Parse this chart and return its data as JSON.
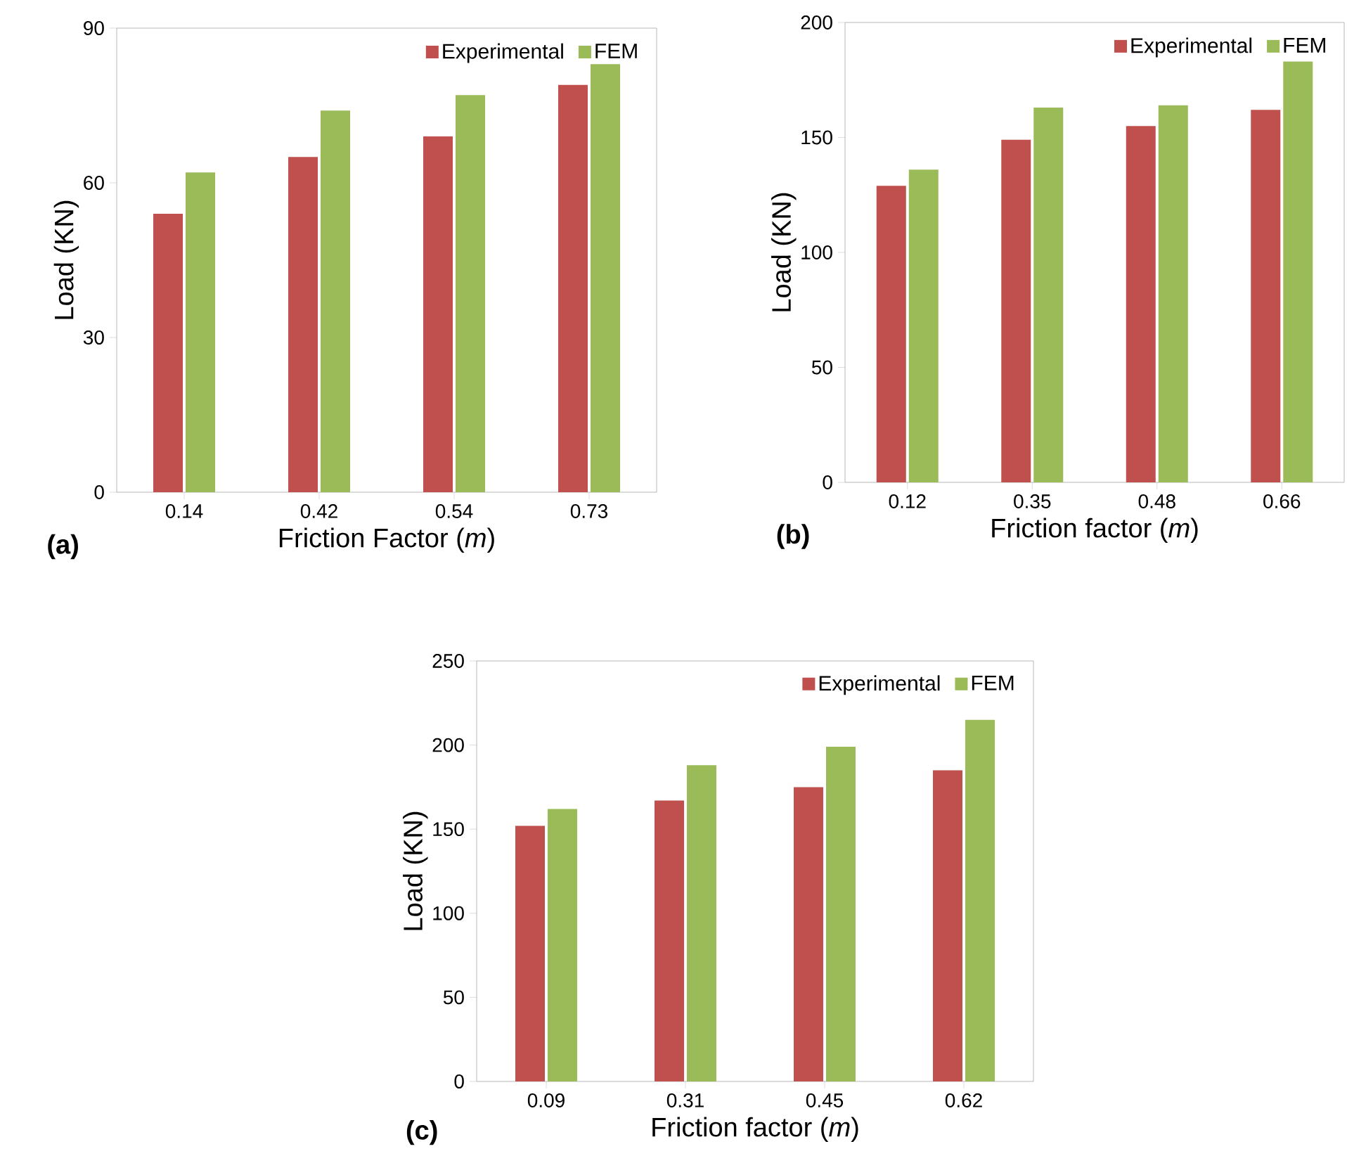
{
  "chart_data": [
    {
      "type": "bar",
      "ylabel": "Load (KN)",
      "xlabel": "Friction Factor (*m*)",
      "categories": [
        "0.14",
        "0.42",
        "0.54",
        "0.73"
      ],
      "ylim": [
        0,
        90
      ],
      "yticks": [
        0,
        30,
        60,
        90
      ],
      "legend": "top right",
      "annotations": [
        "(a)"
      ],
      "series": [
        {
          "name": "Experimental",
          "color": "#c0504d",
          "values": [
            54,
            65,
            69,
            79
          ]
        },
        {
          "name": "FEM",
          "color": "#9bbb59",
          "values": [
            62,
            74,
            77,
            83
          ]
        }
      ]
    },
    {
      "type": "bar",
      "ylabel": "Load (KN)",
      "xlabel": "Friction factor (*m*)",
      "categories": [
        "0.12",
        "0.35",
        "0.48",
        "0.66"
      ],
      "ylim": [
        0,
        200
      ],
      "yticks": [
        0,
        50,
        100,
        150,
        200
      ],
      "legend": "top right",
      "annotations": [
        "(b)"
      ],
      "series": [
        {
          "name": "Experimental",
          "color": "#c0504d",
          "values": [
            129,
            149,
            155,
            162
          ]
        },
        {
          "name": "FEM",
          "color": "#9bbb59",
          "values": [
            136,
            163,
            164,
            183
          ]
        }
      ]
    },
    {
      "type": "bar",
      "ylabel": "Load (KN)",
      "xlabel": "Friction factor (*m*)",
      "categories": [
        "0.09",
        "0.31",
        "0.45",
        "0.62"
      ],
      "ylim": [
        0,
        250
      ],
      "yticks": [
        0,
        50,
        100,
        150,
        200,
        250
      ],
      "legend": "top right",
      "annotations": [
        "(c)"
      ],
      "series": [
        {
          "name": "Experimental",
          "color": "#c0504d",
          "values": [
            152,
            167,
            175,
            185
          ]
        },
        {
          "name": "FEM",
          "color": "#9bbb59",
          "values": [
            162,
            188,
            199,
            215
          ]
        }
      ]
    }
  ]
}
